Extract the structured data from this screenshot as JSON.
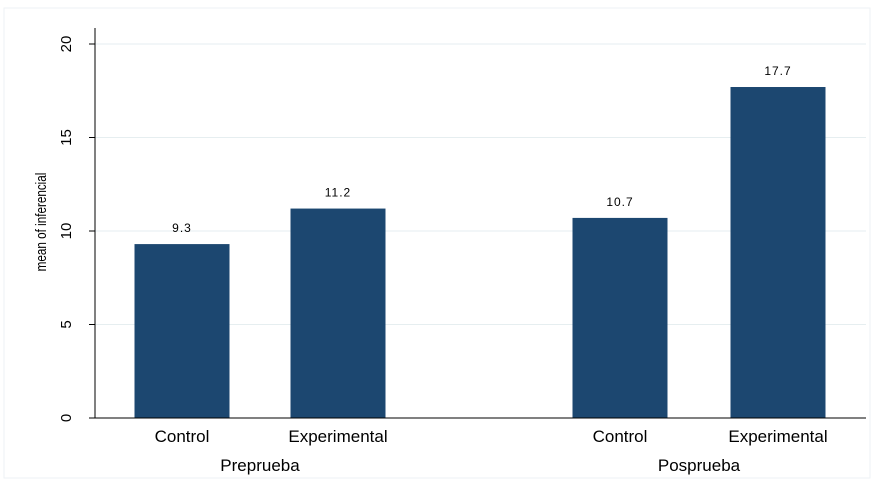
{
  "chart_data": {
    "type": "bar",
    "ylabel": "mean of inferencial",
    "ylim": [
      0,
      20
    ],
    "yticks": [
      0,
      5,
      10,
      15,
      20
    ],
    "grid": true,
    "bar_color": "#1c4770",
    "grid_color": "#e6eef0",
    "groups": [
      {
        "label": "Preprueba",
        "bars": [
          {
            "category": "Control",
            "value": 9.3,
            "label": "9.3"
          },
          {
            "category": "Experimental",
            "value": 11.2,
            "label": "11.2"
          }
        ]
      },
      {
        "label": "Posprueba",
        "bars": [
          {
            "category": "Control",
            "value": 10.7,
            "label": "10.7"
          },
          {
            "category": "Experimental",
            "value": 17.7,
            "label": "17.7"
          }
        ]
      }
    ]
  }
}
